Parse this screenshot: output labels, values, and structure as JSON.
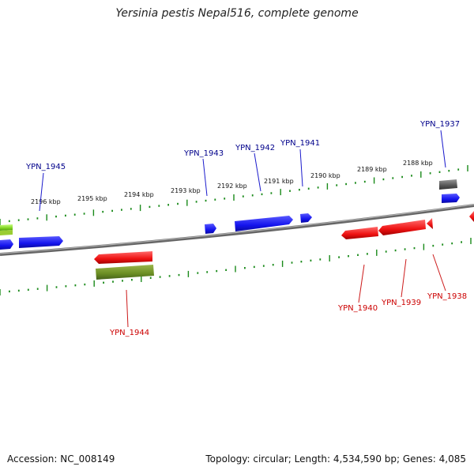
{
  "title": "Yersinia pestis Nepal516, complete genome",
  "footer": {
    "accession": "Accession: NC_008149",
    "topology": "Topology: circular; Length: 4,534,590 bp; Genes: 4,085"
  },
  "colors": {
    "forward": "#1a1aff",
    "reverse": "#ee1111",
    "olive": "#6b8e23",
    "grey": "#555555",
    "green": "#7ed321",
    "tick": "#1a8a1a",
    "backbone": "#777777",
    "label_forward": "#00008b",
    "label_reverse": "#cc0000"
  },
  "ticks": [
    {
      "label": "2188 kbp"
    },
    {
      "label": "2189 kbp"
    },
    {
      "label": "2190 kbp"
    },
    {
      "label": "2191 kbp"
    },
    {
      "label": "2192 kbp"
    },
    {
      "label": "2193 kbp"
    },
    {
      "label": "2194 kbp"
    },
    {
      "label": "2195 kbp"
    },
    {
      "label": "2196 kbp"
    }
  ],
  "genes": [
    {
      "name": "YPN_1937",
      "strand": "forward"
    },
    {
      "name": "YPN_1938",
      "strand": "reverse"
    },
    {
      "name": "YPN_1939",
      "strand": "reverse"
    },
    {
      "name": "YPN_1940",
      "strand": "reverse"
    },
    {
      "name": "YPN_1941",
      "strand": "forward"
    },
    {
      "name": "YPN_1942",
      "strand": "forward"
    },
    {
      "name": "YPN_1943",
      "strand": "forward"
    },
    {
      "name": "YPN_1944",
      "strand": "reverse"
    },
    {
      "name": "YPN_1945",
      "strand": "forward"
    }
  ]
}
